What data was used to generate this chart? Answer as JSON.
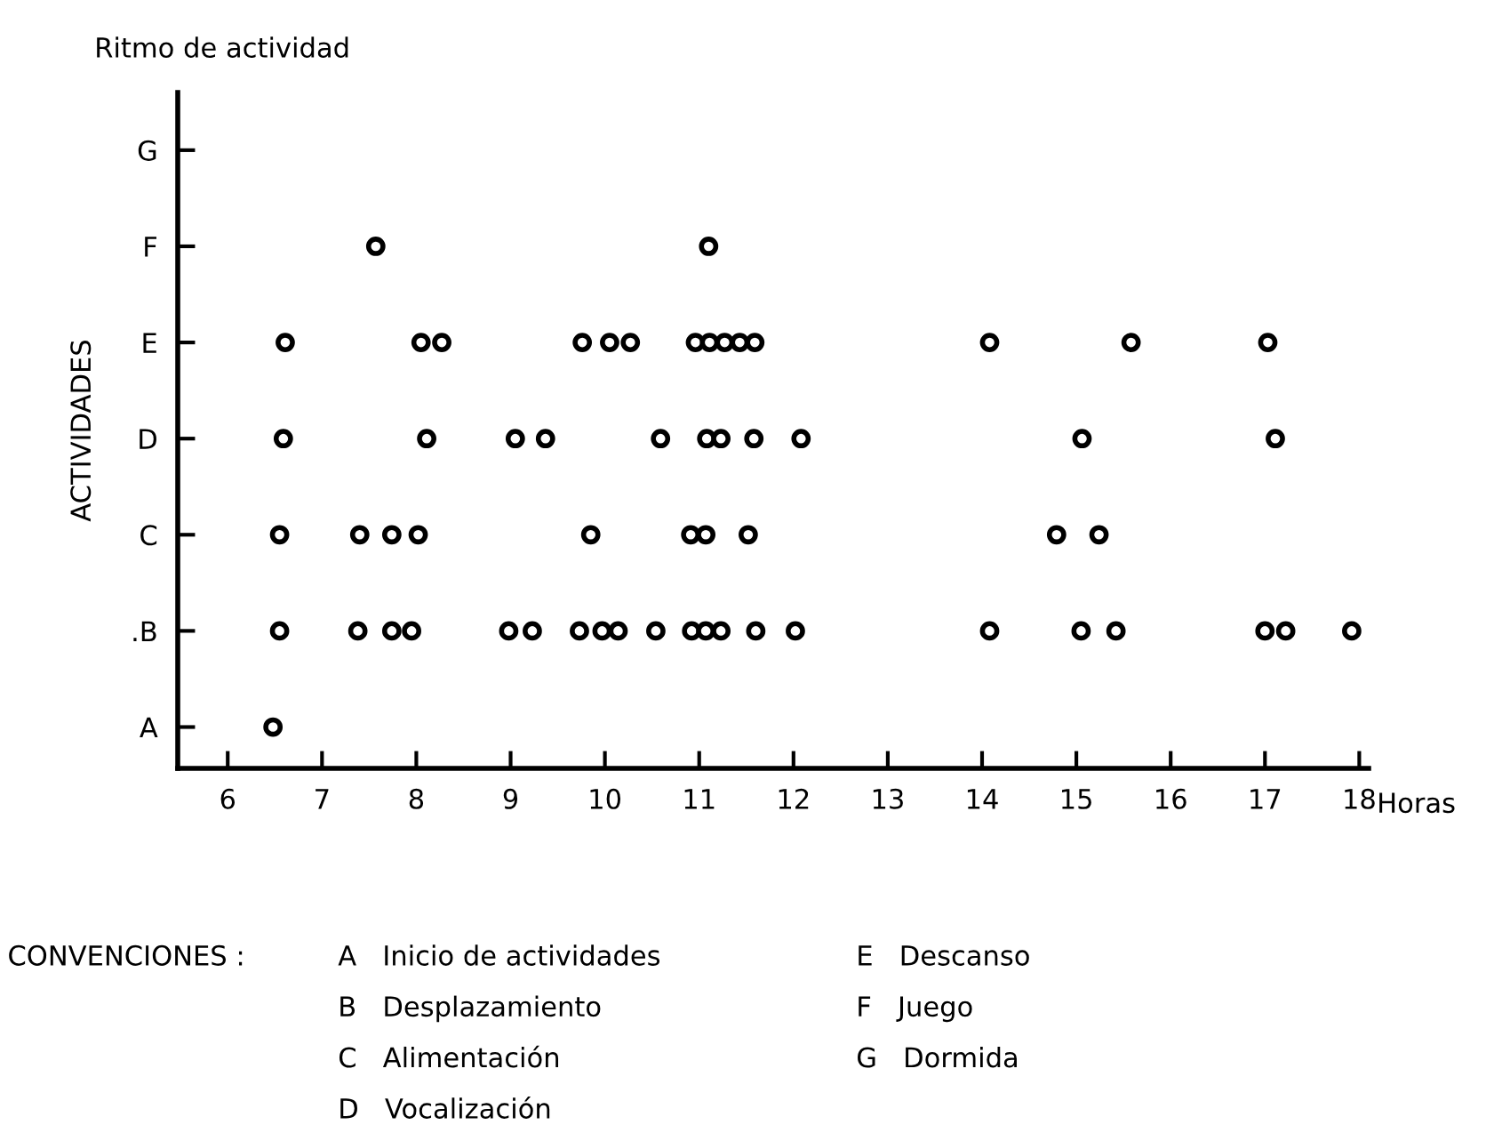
{
  "chart_data": {
    "type": "scatter",
    "orientation": "horizontal",
    "title": "Ritmo de actividad",
    "xlabel": "Horas",
    "ylabel": "ACTIVIDADES",
    "categories": [
      "G",
      "F",
      "E",
      "D",
      "C",
      ".B",
      "A"
    ],
    "series": [
      {
        "color": "#000000",
        "values": [
          null,
          7.57,
          6.61,
          6.59,
          6.55,
          6.55,
          6.48
        ]
      },
      {
        "color": "#000000",
        "values": [
          null,
          11.1,
          8.05,
          8.11,
          7.4,
          7.38,
          null
        ]
      },
      {
        "color": "#000000",
        "values": [
          null,
          null,
          8.27,
          9.05,
          7.74,
          7.74,
          null
        ]
      },
      {
        "color": "#000000",
        "values": [
          null,
          null,
          9.76,
          9.37,
          8.02,
          7.95,
          null
        ]
      },
      {
        "color": "#000000",
        "values": [
          null,
          null,
          10.05,
          10.59,
          9.85,
          8.98,
          null
        ]
      },
      {
        "color": "#000000",
        "values": [
          null,
          null,
          10.27,
          11.08,
          10.91,
          9.23,
          null
        ]
      },
      {
        "color": "#000000",
        "values": [
          null,
          null,
          10.96,
          11.23,
          11.07,
          9.73,
          null
        ]
      },
      {
        "color": "#000000",
        "values": [
          null,
          null,
          11.11,
          11.58,
          11.52,
          9.97,
          null
        ]
      },
      {
        "color": "#000000",
        "values": [
          null,
          null,
          11.27,
          12.08,
          14.79,
          10.14,
          null
        ]
      },
      {
        "color": "#000000",
        "values": [
          null,
          null,
          11.43,
          15.06,
          15.24,
          10.54,
          null
        ]
      },
      {
        "color": "#000000",
        "values": [
          null,
          null,
          11.59,
          17.11,
          null,
          10.92,
          null
        ]
      },
      {
        "color": "#000000",
        "values": [
          null,
          null,
          14.08,
          null,
          null,
          11.07,
          null
        ]
      },
      {
        "color": "#000000",
        "values": [
          null,
          null,
          15.58,
          null,
          null,
          11.23,
          null
        ]
      },
      {
        "color": "#000000",
        "values": [
          null,
          null,
          17.03,
          null,
          null,
          11.6,
          null
        ]
      },
      {
        "color": "#000000",
        "values": [
          null,
          null,
          null,
          null,
          null,
          12.02,
          null
        ]
      },
      {
        "color": "#000000",
        "values": [
          null,
          null,
          null,
          null,
          null,
          14.08,
          null
        ]
      },
      {
        "color": "#000000",
        "values": [
          null,
          null,
          null,
          null,
          null,
          15.05,
          null
        ]
      },
      {
        "color": "#000000",
        "values": [
          null,
          null,
          null,
          null,
          null,
          15.42,
          null
        ]
      },
      {
        "color": "#000000",
        "values": [
          null,
          null,
          null,
          null,
          null,
          17.0,
          null
        ]
      },
      {
        "color": "#000000",
        "values": [
          null,
          null,
          null,
          null,
          null,
          17.22,
          null
        ]
      },
      {
        "color": "#000000",
        "values": [
          null,
          null,
          null,
          null,
          null,
          17.92,
          null
        ]
      }
    ],
    "xlim": [
      5.47,
      18.1
    ],
    "xticks": [
      6,
      7,
      8,
      9,
      10,
      11,
      12,
      13,
      14,
      15,
      16,
      17,
      18
    ],
    "grid": false,
    "legend": false,
    "marker": "circle",
    "annotations": [
      "CONVENCIONES :",
      "A   Inicio de actividades",
      "B   Desplazamiento",
      "C   Alimentación",
      "D   Vocalización",
      "E   Descanso",
      "F   Juego",
      "G   Dormida"
    ]
  }
}
